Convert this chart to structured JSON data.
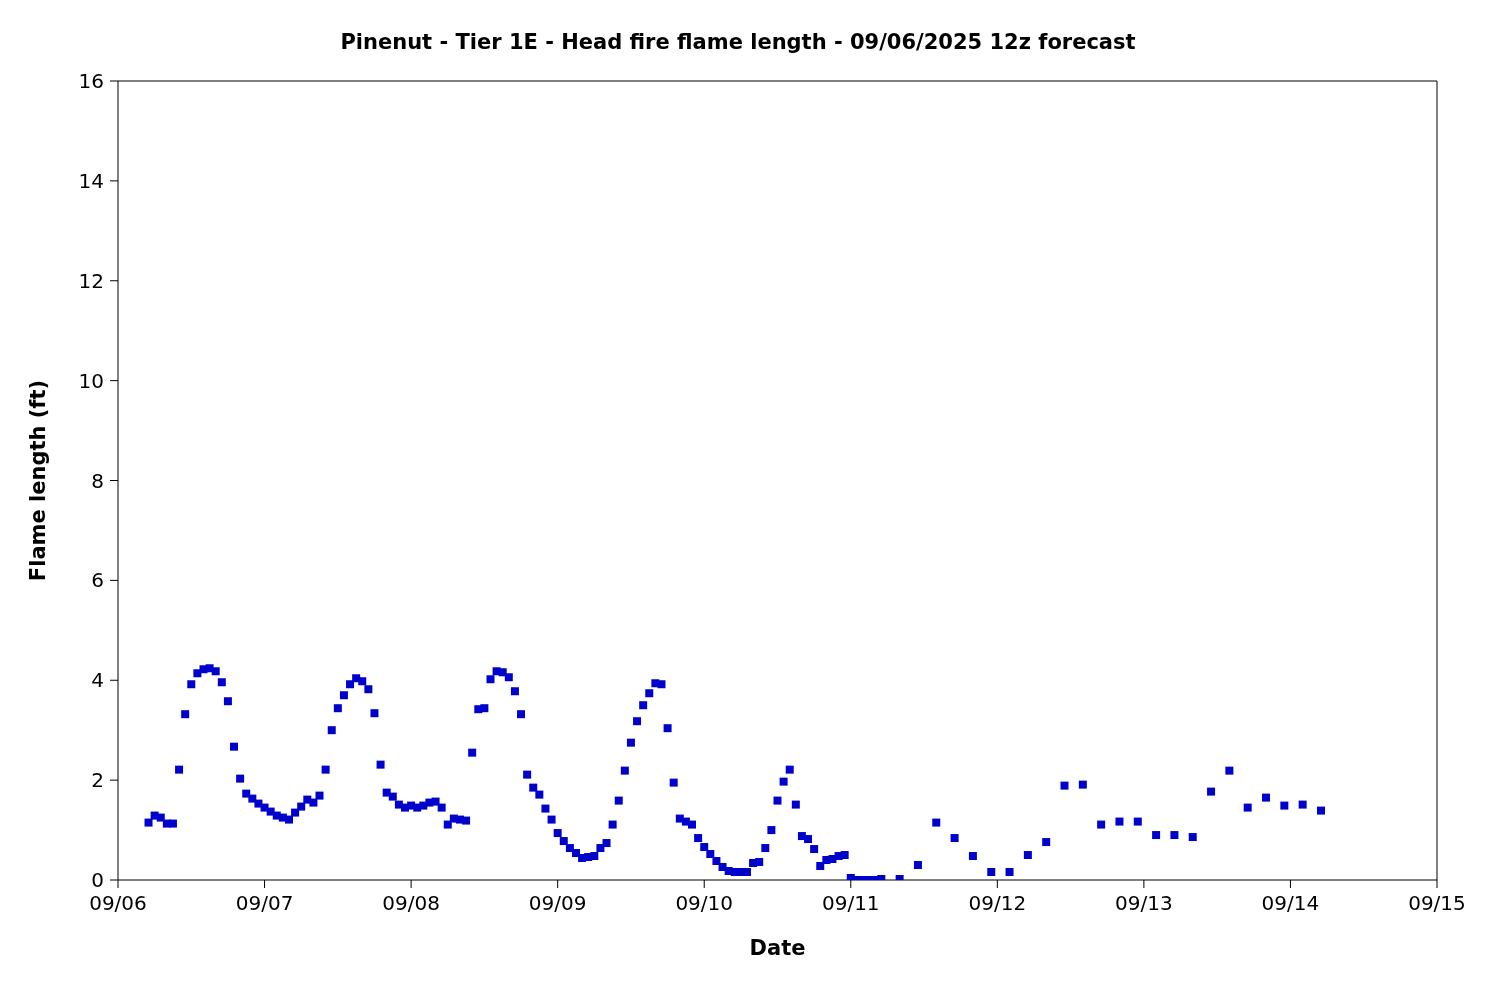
{
  "chart_data": {
    "type": "scatter",
    "title": "Pinenut - Tier 1E - Head fire flame length - 09/06/2025 12z forecast",
    "xlabel": "Date",
    "ylabel": "Flame length (ft)",
    "xlim": [
      "2025-09-06",
      "2025-09-15"
    ],
    "xticks": [
      {
        "value": "2025-09-06",
        "label": "09/06"
      },
      {
        "value": "2025-09-07",
        "label": "09/07"
      },
      {
        "value": "2025-09-08",
        "label": "09/08"
      },
      {
        "value": "2025-09-09",
        "label": "09/09"
      },
      {
        "value": "2025-09-10",
        "label": "09/10"
      },
      {
        "value": "2025-09-11",
        "label": "09/11"
      },
      {
        "value": "2025-09-12",
        "label": "09/12"
      },
      {
        "value": "2025-09-13",
        "label": "09/13"
      },
      {
        "value": "2025-09-14",
        "label": "09/14"
      },
      {
        "value": "2025-09-15",
        "label": "09/15"
      }
    ],
    "ylim": [
      0,
      16
    ],
    "yticks": [
      0,
      2,
      4,
      6,
      8,
      10,
      12,
      14,
      16
    ],
    "grid": false,
    "legend": false,
    "marker": "square",
    "series": [
      {
        "color": "#0000cc",
        "x": [
          "2025-09-06T05:00",
          "2025-09-06T06:00",
          "2025-09-06T07:00",
          "2025-09-06T08:00",
          "2025-09-06T09:00",
          "2025-09-06T10:00",
          "2025-09-06T11:00",
          "2025-09-06T12:00",
          "2025-09-06T13:00",
          "2025-09-06T14:00",
          "2025-09-06T15:00",
          "2025-09-06T16:00",
          "2025-09-06T17:00",
          "2025-09-06T18:00",
          "2025-09-06T19:00",
          "2025-09-06T20:00",
          "2025-09-06T21:00",
          "2025-09-06T22:00",
          "2025-09-06T23:00",
          "2025-09-07T00:00",
          "2025-09-07T01:00",
          "2025-09-07T02:00",
          "2025-09-07T03:00",
          "2025-09-07T04:00",
          "2025-09-07T05:00",
          "2025-09-07T06:00",
          "2025-09-07T07:00",
          "2025-09-07T08:00",
          "2025-09-07T09:00",
          "2025-09-07T10:00",
          "2025-09-07T11:00",
          "2025-09-07T12:00",
          "2025-09-07T13:00",
          "2025-09-07T14:00",
          "2025-09-07T15:00",
          "2025-09-07T16:00",
          "2025-09-07T17:00",
          "2025-09-07T18:00",
          "2025-09-07T19:00",
          "2025-09-07T20:00",
          "2025-09-07T21:00",
          "2025-09-07T22:00",
          "2025-09-07T23:00",
          "2025-09-08T00:00",
          "2025-09-08T01:00",
          "2025-09-08T02:00",
          "2025-09-08T03:00",
          "2025-09-08T04:00",
          "2025-09-08T05:00",
          "2025-09-08T06:00",
          "2025-09-08T07:00",
          "2025-09-08T08:00",
          "2025-09-08T09:00",
          "2025-09-08T10:00",
          "2025-09-08T11:00",
          "2025-09-08T12:00",
          "2025-09-08T13:00",
          "2025-09-08T14:00",
          "2025-09-08T15:00",
          "2025-09-08T16:00",
          "2025-09-08T17:00",
          "2025-09-08T18:00",
          "2025-09-08T19:00",
          "2025-09-08T20:00",
          "2025-09-08T21:00",
          "2025-09-08T22:00",
          "2025-09-08T23:00",
          "2025-09-09T00:00",
          "2025-09-09T01:00",
          "2025-09-09T02:00",
          "2025-09-09T03:00",
          "2025-09-09T04:00",
          "2025-09-09T05:00",
          "2025-09-09T06:00",
          "2025-09-09T07:00",
          "2025-09-09T08:00",
          "2025-09-09T09:00",
          "2025-09-09T10:00",
          "2025-09-09T11:00",
          "2025-09-09T12:00",
          "2025-09-09T13:00",
          "2025-09-09T14:00",
          "2025-09-09T15:00",
          "2025-09-09T16:00",
          "2025-09-09T17:00",
          "2025-09-09T18:00",
          "2025-09-09T19:00",
          "2025-09-09T20:00",
          "2025-09-09T21:00",
          "2025-09-09T22:00",
          "2025-09-09T23:00",
          "2025-09-10T00:00",
          "2025-09-10T01:00",
          "2025-09-10T02:00",
          "2025-09-10T03:00",
          "2025-09-10T04:00",
          "2025-09-10T05:00",
          "2025-09-10T06:00",
          "2025-09-10T07:00",
          "2025-09-10T08:00",
          "2025-09-10T09:00",
          "2025-09-10T10:00",
          "2025-09-10T11:00",
          "2025-09-10T12:00",
          "2025-09-10T13:00",
          "2025-09-10T14:00",
          "2025-09-10T15:00",
          "2025-09-10T16:00",
          "2025-09-10T17:00",
          "2025-09-10T18:00",
          "2025-09-10T19:00",
          "2025-09-10T20:00",
          "2025-09-10T21:00",
          "2025-09-10T22:00",
          "2025-09-10T23:00",
          "2025-09-11T00:00",
          "2025-09-11T01:00",
          "2025-09-11T02:00",
          "2025-09-11T03:00",
          "2025-09-11T04:00",
          "2025-09-11T05:00",
          "2025-09-11T08:00",
          "2025-09-11T11:00",
          "2025-09-11T14:00",
          "2025-09-11T17:00",
          "2025-09-11T20:00",
          "2025-09-11T23:00",
          "2025-09-12T02:00",
          "2025-09-12T05:00",
          "2025-09-12T08:00",
          "2025-09-12T11:00",
          "2025-09-12T14:00",
          "2025-09-12T17:00",
          "2025-09-12T20:00",
          "2025-09-12T23:00",
          "2025-09-13T02:00",
          "2025-09-13T05:00",
          "2025-09-13T08:00",
          "2025-09-13T11:00",
          "2025-09-13T14:00",
          "2025-09-13T17:00",
          "2025-09-13T20:00",
          "2025-09-13T23:00",
          "2025-09-14T02:00",
          "2025-09-14T05:00"
        ],
        "values": [
          1.15,
          1.29,
          1.25,
          1.13,
          1.13,
          2.21,
          3.32,
          3.92,
          4.14,
          4.22,
          4.24,
          4.18,
          3.96,
          3.58,
          2.67,
          2.03,
          1.73,
          1.63,
          1.53,
          1.45,
          1.37,
          1.29,
          1.25,
          1.21,
          1.35,
          1.47,
          1.61,
          1.55,
          1.69,
          2.21,
          3.0,
          3.44,
          3.7,
          3.92,
          4.04,
          3.98,
          3.82,
          3.34,
          2.31,
          1.75,
          1.67,
          1.51,
          1.45,
          1.49,
          1.45,
          1.49,
          1.55,
          1.57,
          1.45,
          1.11,
          1.23,
          1.21,
          1.19,
          2.55,
          3.42,
          3.44,
          4.02,
          4.18,
          4.16,
          4.06,
          3.78,
          3.32,
          2.11,
          1.85,
          1.71,
          1.43,
          1.21,
          0.94,
          0.78,
          0.64,
          0.54,
          0.44,
          0.46,
          0.48,
          0.64,
          0.74,
          1.11,
          1.59,
          2.19,
          2.75,
          3.18,
          3.5,
          3.74,
          3.94,
          3.92,
          3.04,
          1.95,
          1.23,
          1.17,
          1.11,
          0.84,
          0.66,
          0.52,
          0.38,
          0.26,
          0.18,
          0.16,
          0.16,
          0.16,
          0.34,
          0.36,
          0.64,
          1.0,
          1.59,
          1.97,
          2.21,
          1.51,
          0.88,
          0.82,
          0.62,
          0.28,
          0.4,
          0.42,
          0.48,
          0.5,
          0.04,
          0,
          0,
          0,
          0,
          0.02,
          0.02,
          0.3,
          1.15,
          0.84,
          0.48,
          0.16,
          0.16,
          0.5,
          0.76,
          1.89,
          1.91,
          1.11,
          1.17,
          1.17,
          0.9,
          0.9,
          0.86,
          1.77,
          2.19,
          1.45,
          1.65,
          1.49,
          1.51,
          1.39
        ]
      }
    ]
  }
}
